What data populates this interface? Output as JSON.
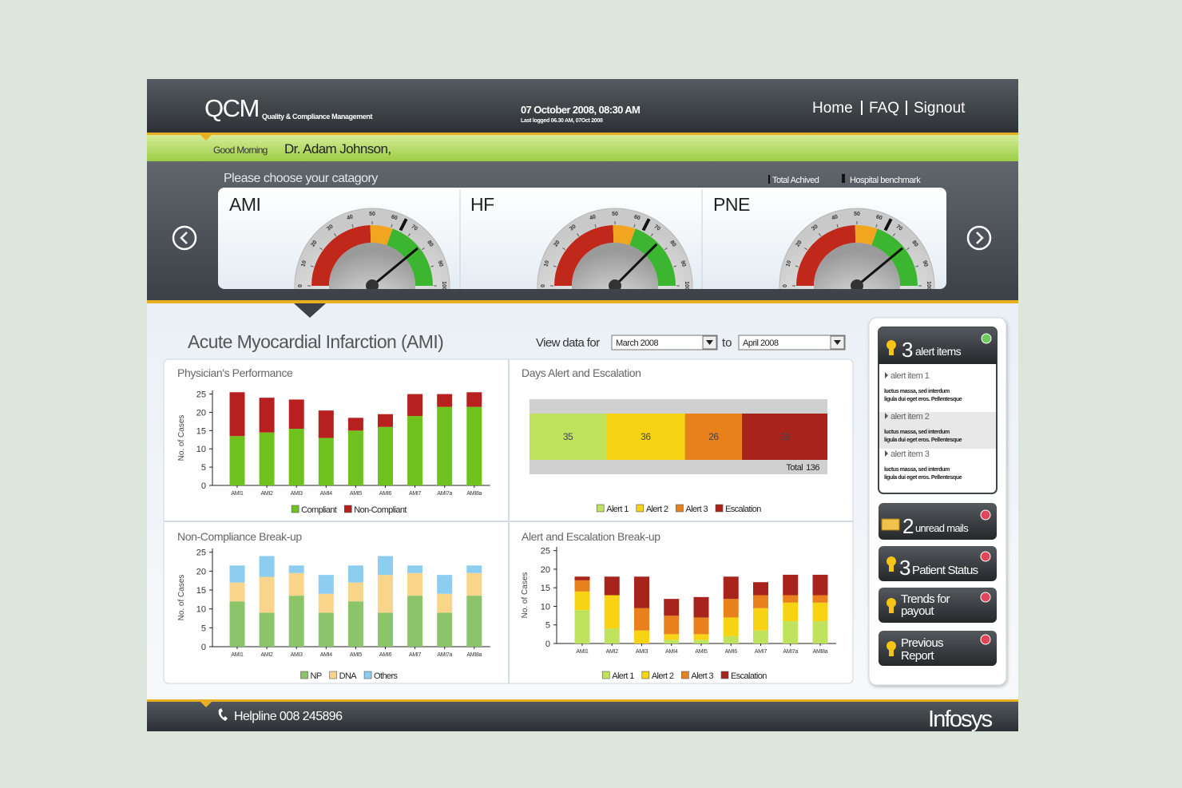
{
  "header": {
    "logo": "QCM",
    "tagline": "Quality & Compliance Management",
    "datetime": "07 October 2008, 08:30 AM",
    "last_login": "Last logged 06.30 AM, 07Oct 2008",
    "nav": [
      "Home",
      "FAQ",
      "Signout"
    ]
  },
  "greeting": {
    "salutation": "Good Morning",
    "name": "Dr. Adam Johnson,"
  },
  "category": {
    "prompt": "Please choose your catagory",
    "legend": [
      "Total Achived",
      "Hospital benchmark"
    ]
  },
  "main": {
    "title": "Acute Myocardial Infarction (AMI)",
    "view_label": "View data for",
    "from": "March 2008",
    "to_label": "to",
    "to": "April 2008"
  },
  "chart_data": [
    {
      "type": "gauge",
      "title": "AMI",
      "value": 78,
      "benchmark": 65,
      "xlim": [
        0,
        100
      ],
      "xticks": [
        0,
        10,
        20,
        30,
        40,
        50,
        60,
        70,
        80,
        90,
        100
      ],
      "bands": [
        {
          "from": 0,
          "to": 49,
          "color": "#c0281c"
        },
        {
          "from": 49,
          "to": 61,
          "color": "#f2a51f"
        },
        {
          "from": 61,
          "to": 100,
          "color": "#3cb531"
        }
      ]
    },
    {
      "type": "gauge",
      "title": "HF",
      "value": 75,
      "benchmark": 65,
      "xlim": [
        0,
        100
      ],
      "xticks": [
        0,
        10,
        20,
        30,
        40,
        50,
        60,
        70,
        80,
        90,
        100
      ],
      "bands": [
        {
          "from": 0,
          "to": 49,
          "color": "#c0281c"
        },
        {
          "from": 49,
          "to": 61,
          "color": "#f2a51f"
        },
        {
          "from": 61,
          "to": 100,
          "color": "#3cb531"
        }
      ]
    },
    {
      "type": "gauge",
      "title": "PNE",
      "value": 78,
      "benchmark": 65,
      "xlim": [
        0,
        100
      ],
      "xticks": [
        0,
        10,
        20,
        30,
        40,
        50,
        60,
        70,
        80,
        90,
        100
      ],
      "bands": [
        {
          "from": 0,
          "to": 49,
          "color": "#c0281c"
        },
        {
          "from": 49,
          "to": 61,
          "color": "#f2a51f"
        },
        {
          "from": 61,
          "to": 100,
          "color": "#3cb531"
        }
      ]
    },
    {
      "type": "bar",
      "stacked": true,
      "title": "Physician's Performance",
      "ylabel": "No. of Cases",
      "categories": [
        "AMI1",
        "AMI2",
        "AMI3",
        "AMI4",
        "AMI5",
        "AMI6",
        "AMI7",
        "AMI7a",
        "AMI8a"
      ],
      "series": [
        {
          "name": "Compliant",
          "color": "#6fc21e",
          "values": [
            13.5,
            14.5,
            15.5,
            13,
            15,
            16,
            19,
            21.5,
            21.5
          ]
        },
        {
          "name": "Non-Compliant",
          "color": "#b82020",
          "values": [
            12,
            9.5,
            8,
            7.5,
            3.5,
            3.5,
            6,
            3.5,
            4
          ]
        }
      ],
      "ylim": [
        0,
        26
      ],
      "yticks": [
        0,
        5,
        10,
        15,
        20,
        25
      ]
    },
    {
      "type": "stacked-hbar",
      "title": "Days Alert and Escalation",
      "series": [
        {
          "name": "Alert 1",
          "color": "#bfe35c",
          "values": [
            35
          ]
        },
        {
          "name": "Alert 2",
          "color": "#f8d313",
          "values": [
            36
          ]
        },
        {
          "name": "Alert 3",
          "color": "#e8801c",
          "values": [
            26
          ]
        },
        {
          "name": "Escalation",
          "color": "#a8231b",
          "values": [
            39
          ]
        }
      ],
      "xlim": [
        0,
        136
      ],
      "total_label": "Total",
      "total": 136
    },
    {
      "type": "bar",
      "stacked": true,
      "title": "Non-Compliance Break-up",
      "ylabel": "No. of Cases",
      "categories": [
        "AMI1",
        "AMI2",
        "AMI3",
        "AMI4",
        "AMI5",
        "AMI6",
        "AMI7",
        "AMI7a",
        "AMI8a"
      ],
      "series": [
        {
          "name": "NP",
          "color": "#8cc46c",
          "values": [
            12,
            9,
            13.5,
            9,
            12,
            9,
            13.5,
            9,
            13.5
          ]
        },
        {
          "name": "DNA",
          "color": "#f9d58c",
          "values": [
            5,
            9.5,
            6,
            5,
            5,
            10,
            6,
            5,
            6
          ]
        },
        {
          "name": "Others",
          "color": "#8ccdf0",
          "values": [
            4.5,
            5.5,
            2,
            5,
            4.5,
            5,
            2,
            5,
            2
          ]
        }
      ],
      "ylim": [
        0,
        26
      ],
      "yticks": [
        0,
        5,
        10,
        15,
        20,
        25
      ]
    },
    {
      "type": "bar",
      "stacked": true,
      "title": "Alert and Escalation Break-up",
      "ylabel": "No. of Cases",
      "categories": [
        "AMI1",
        "AMI2",
        "AMI3",
        "AMI4",
        "AMI5",
        "AMI6",
        "AMI7",
        "AMI7a",
        "AMI8a"
      ],
      "series": [
        {
          "name": "Alert 1",
          "color": "#bfe35c",
          "values": [
            9,
            4,
            0,
            1,
            1,
            2,
            3.5,
            6,
            6
          ]
        },
        {
          "name": "Alert 2",
          "color": "#f8d313",
          "values": [
            5,
            9,
            3.5,
            1.5,
            1.5,
            5,
            6,
            5,
            5
          ]
        },
        {
          "name": "Alert 3",
          "color": "#e8801c",
          "values": [
            3,
            0,
            6,
            5,
            4.5,
            5,
            3.5,
            2,
            2
          ]
        },
        {
          "name": "Escalation",
          "color": "#a8231b",
          "values": [
            1,
            5,
            8.5,
            4.5,
            5.5,
            6,
            3.5,
            5.5,
            5.5
          ]
        }
      ],
      "ylim": [
        0,
        26
      ],
      "yticks": [
        0,
        5,
        10,
        15,
        20,
        25
      ]
    }
  ],
  "sidebar": {
    "alerts": {
      "count": 3,
      "label": "alert items",
      "items": [
        {
          "title": "alert item 1",
          "lines": [
            "luctus massa, sed interdum",
            "ligula dui eget eros. Pellentesque"
          ]
        },
        {
          "title": "alert item 2",
          "lines": [
            "luctus massa, sed interdum",
            "ligula dui eget eros. Pellentesque"
          ]
        },
        {
          "title": "alert item 3",
          "lines": [
            "luctus massa, sed interdum",
            "ligula dui eget eros. Pellentesque"
          ]
        }
      ]
    },
    "mails": {
      "count": 2,
      "label": "unread mails"
    },
    "patients": {
      "count": 3,
      "label": "Patient Status"
    },
    "trends": [
      "Trends for",
      "payout"
    ],
    "report": [
      "Previous",
      "Report"
    ]
  },
  "footer": {
    "helpline": "Helpline 008 245896",
    "brand": "Infosys"
  }
}
